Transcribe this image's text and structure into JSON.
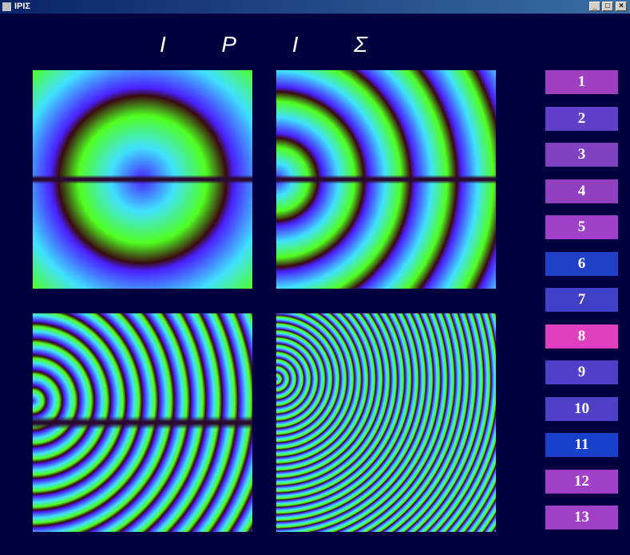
{
  "window": {
    "title": "ΙΡΙΣ"
  },
  "header": [
    "Ι",
    "Ρ",
    "Ι",
    "Σ"
  ],
  "buttons": [
    {
      "label": "1",
      "color": "#a040c0"
    },
    {
      "label": "2",
      "color": "#6040c8"
    },
    {
      "label": "3",
      "color": "#8040c0"
    },
    {
      "label": "4",
      "color": "#9040c0"
    },
    {
      "label": "5",
      "color": "#a040c8"
    },
    {
      "label": "6",
      "color": "#2040c8"
    },
    {
      "label": "7",
      "color": "#4040c8"
    },
    {
      "label": "8",
      "color": "#e040c0"
    },
    {
      "label": "9",
      "color": "#5040c8"
    },
    {
      "label": "10",
      "color": "#5040c8"
    },
    {
      "label": "11",
      "color": "#1840c8"
    },
    {
      "label": "12",
      "color": "#a040c8"
    },
    {
      "label": "13",
      "color": "#a040c8"
    }
  ]
}
